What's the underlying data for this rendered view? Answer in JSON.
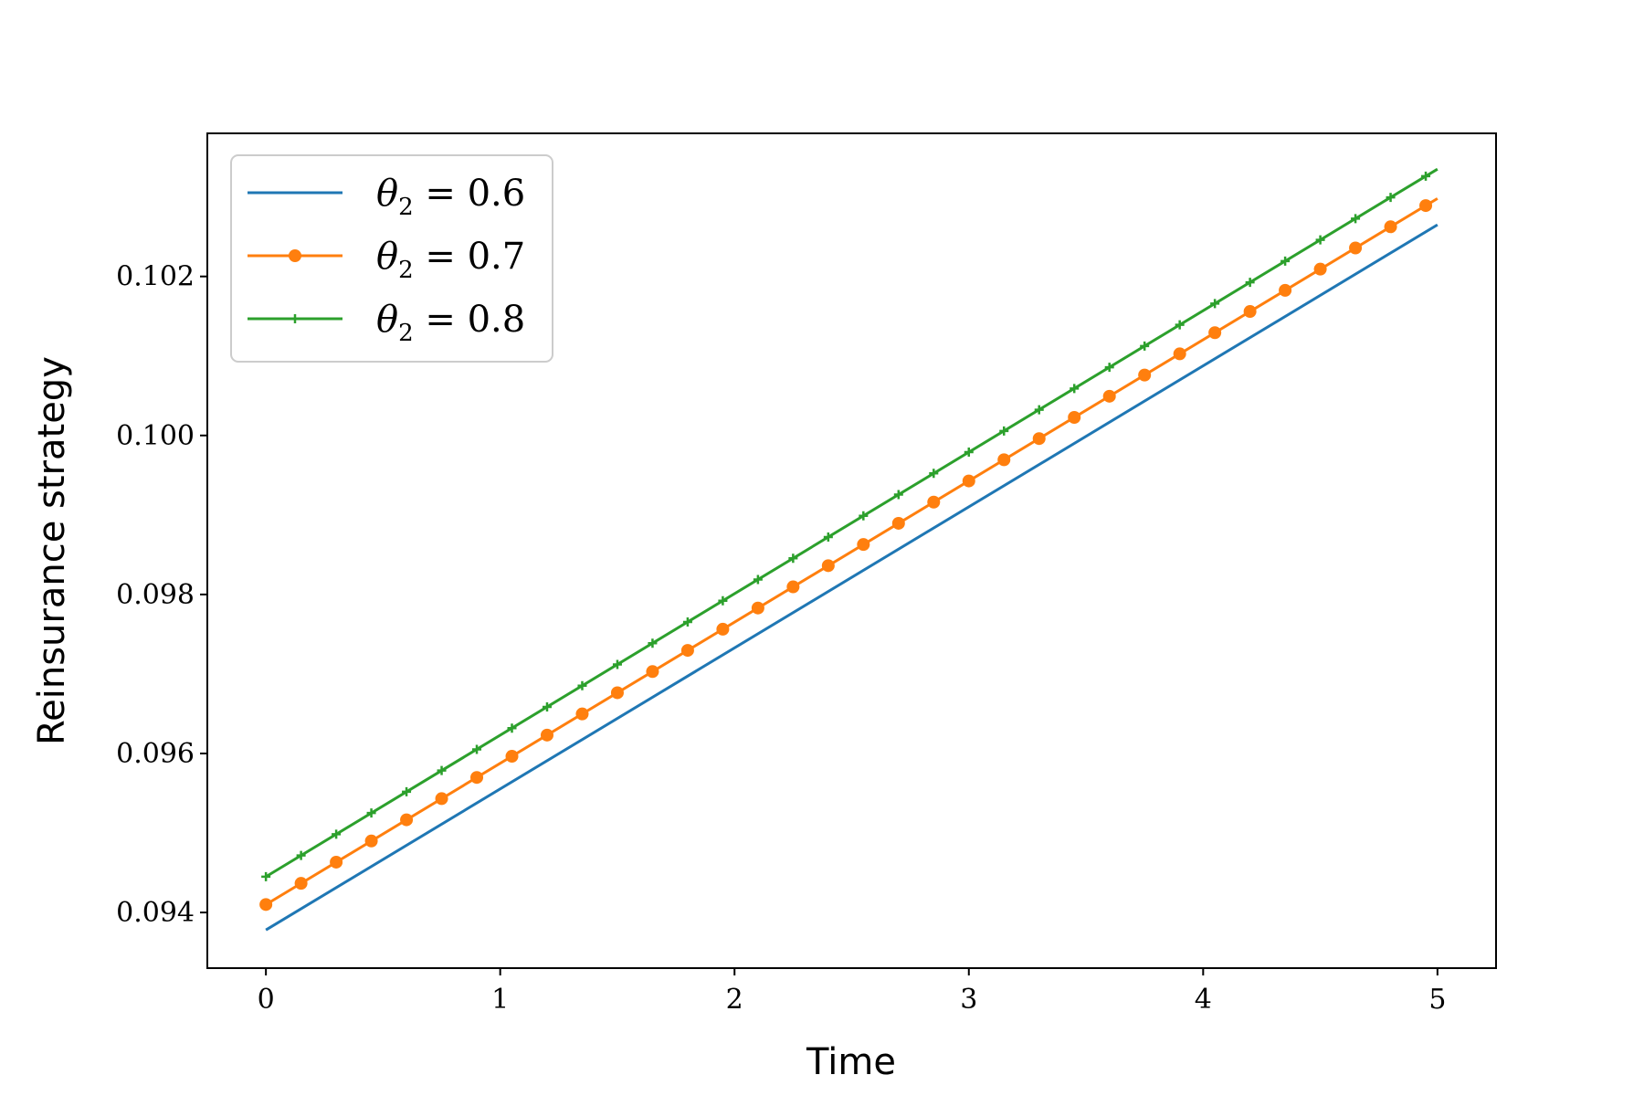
{
  "chart_data": {
    "type": "line",
    "title": "",
    "xlabel": "Time",
    "ylabel": "Reinsurance strategy",
    "xlim": [
      -0.25,
      5.25
    ],
    "ylim": [
      0.0933,
      0.1038
    ],
    "xticks": [
      0,
      1,
      2,
      3,
      4,
      5
    ],
    "xtick_labels": [
      "0",
      "1",
      "2",
      "3",
      "4",
      "5"
    ],
    "yticks": [
      0.094,
      0.096,
      0.098,
      0.1,
      0.102
    ],
    "ytick_labels": [
      "0.094",
      "0.096",
      "0.098",
      "0.100",
      "0.102"
    ],
    "grid": false,
    "legend_position": "top-left",
    "series": [
      {
        "name": "θ2 = 0.6",
        "color": "#1f77b4",
        "marker": "none",
        "x_start": 0,
        "x_end": 5,
        "y_start": 0.09378,
        "y_end": 0.10265
      },
      {
        "name": "θ2 = 0.7",
        "color": "#ff7f0e",
        "marker": "circle",
        "x_start": 0,
        "x_end": 5,
        "y_start": 0.0941,
        "y_end": 0.10298
      },
      {
        "name": "θ2 = 0.8",
        "color": "#2ca02c",
        "marker": "plus",
        "x_start": 0,
        "x_end": 5,
        "y_start": 0.09445,
        "y_end": 0.10335
      }
    ],
    "marker_x": [
      0,
      0.15,
      0.3,
      0.45,
      0.6,
      0.75,
      0.9,
      1.05,
      1.2,
      1.35,
      1.5,
      1.65,
      1.8,
      1.95,
      2.1,
      2.25,
      2.4,
      2.55,
      2.7,
      2.85,
      3.0,
      3.15,
      3.3,
      3.45,
      3.6,
      3.75,
      3.9,
      4.05,
      4.2,
      4.35,
      4.5,
      4.65,
      4.8,
      4.95
    ],
    "legend": [
      {
        "symbol": "θ",
        "sub": "2",
        "rest": " = 0.6"
      },
      {
        "symbol": "θ",
        "sub": "2",
        "rest": " = 0.7"
      },
      {
        "symbol": "θ",
        "sub": "2",
        "rest": " = 0.8"
      }
    ]
  }
}
